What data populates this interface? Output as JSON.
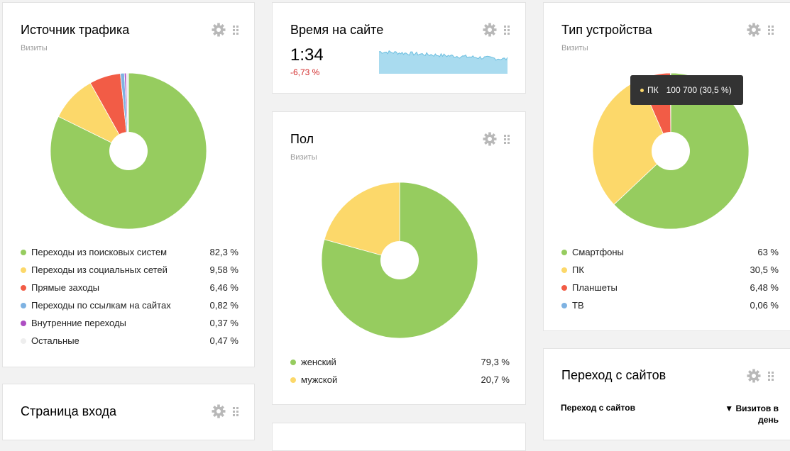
{
  "traffic_source": {
    "title": "Источник трафика",
    "subtitle": "Визиты",
    "chart_data": {
      "type": "pie",
      "categories": [
        "Переходы из поисковых систем",
        "Переходы из социальных сетей",
        "Прямые заходы",
        "Переходы по ссылкам на сайтах",
        "Внутренние переходы",
        "Остальные"
      ],
      "values": [
        82.3,
        9.58,
        6.46,
        0.82,
        0.37,
        0.47
      ],
      "colors": [
        "#96cc5f",
        "#fcd86a",
        "#f25c46",
        "#7eb2e2",
        "#ad4ec2",
        "#eeeeee"
      ]
    },
    "legend": [
      {
        "label": "Переходы из поисковых систем",
        "value": "82,3 %",
        "color": "#96cc5f"
      },
      {
        "label": "Переходы из социальных сетей",
        "value": "9,58 %",
        "color": "#fcd86a"
      },
      {
        "label": "Прямые заходы",
        "value": "6,46 %",
        "color": "#f25c46"
      },
      {
        "label": "Переходы по ссылкам на сайтах",
        "value": "0,82 %",
        "color": "#7eb2e2"
      },
      {
        "label": "Внутренние переходы",
        "value": "0,37 %",
        "color": "#ad4ec2"
      },
      {
        "label": "Остальные",
        "value": "0,47 %",
        "color": "#eeeeee"
      }
    ]
  },
  "time_on_site": {
    "title": "Время на сайте",
    "value": "1:34",
    "delta": "-6,73 %",
    "spark_color": "#a9dbef"
  },
  "gender": {
    "title": "Пол",
    "subtitle": "Визиты",
    "chart_data": {
      "type": "pie",
      "categories": [
        "женский",
        "мужской"
      ],
      "values": [
        79.3,
        20.7
      ],
      "colors": [
        "#96cc5f",
        "#fcd86a"
      ]
    },
    "legend": [
      {
        "label": "женский",
        "value": "79,3 %",
        "color": "#96cc5f"
      },
      {
        "label": "мужской",
        "value": "20,7 %",
        "color": "#fcd86a"
      }
    ]
  },
  "device_type": {
    "title": "Тип устройства",
    "subtitle": "Визиты",
    "chart_data": {
      "type": "pie",
      "categories": [
        "Смартфоны",
        "ПК",
        "Планшеты",
        "ТВ"
      ],
      "values": [
        63,
        30.5,
        6.48,
        0.06
      ],
      "colors": [
        "#96cc5f",
        "#fcd86a",
        "#f25c46",
        "#7eb2e2"
      ]
    },
    "legend": [
      {
        "label": "Смартфоны",
        "value": "63 %",
        "color": "#96cc5f"
      },
      {
        "label": "ПК",
        "value": "30,5 %",
        "color": "#fcd86a"
      },
      {
        "label": "Планшеты",
        "value": "6,48 %",
        "color": "#f25c46"
      },
      {
        "label": "ТВ",
        "value": "0,06 %",
        "color": "#7eb2e2"
      }
    ],
    "tooltip": {
      "label": "ПК",
      "value": "100 700 (30,5 %)",
      "color": "#fcd86a"
    }
  },
  "entry_page": {
    "title": "Страница входа"
  },
  "referral": {
    "title": "Переход с сайтов",
    "col_left": "Переход с сайтов",
    "col_right": "▼ Визитов в день"
  },
  "icons": {
    "settings": "gear-icon",
    "drag": "drag-handle-icon"
  }
}
